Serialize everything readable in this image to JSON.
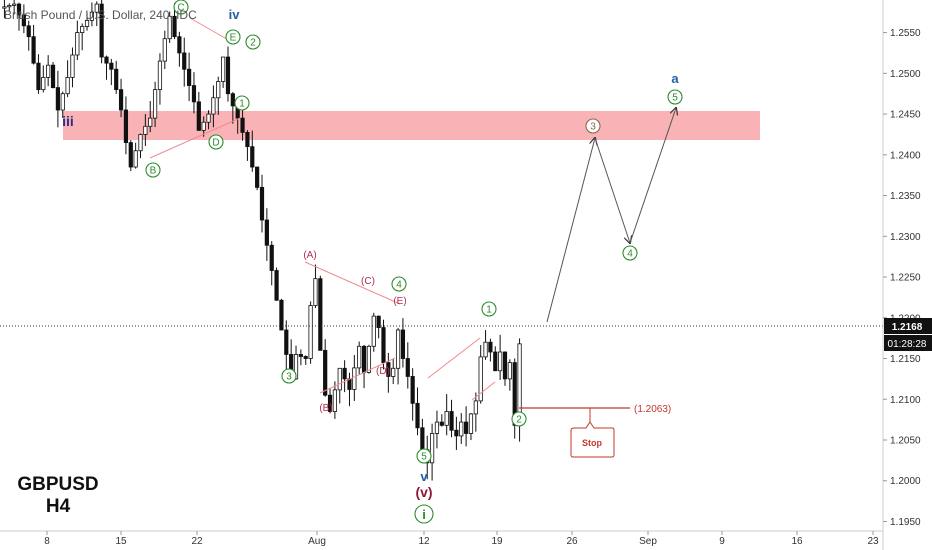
{
  "header": {
    "title": "British Pound / U.S. Dollar, 240, IDC"
  },
  "symbol": {
    "name": "GBPUSD",
    "timeframe": "H4"
  },
  "colors": {
    "bull": "#111111",
    "bear": "#111111",
    "green": "#2e8b2e",
    "red": "#c0392b",
    "blue": "#1e5fa8",
    "zone": "#f8a5a8"
  },
  "price_axis": {
    "ticks": [
      "1.2550",
      "1.2500",
      "1.2450",
      "1.2400",
      "1.2350",
      "1.2300",
      "1.2250",
      "1.2200",
      "1.2150",
      "1.2100",
      "1.2050",
      "1.2000",
      "1.1950"
    ],
    "current_price": "1.2168",
    "countdown": "01:28:28"
  },
  "time_axis": {
    "ticks": [
      "8",
      "15",
      "22",
      "Aug",
      "12",
      "19",
      "26",
      "Sep",
      "9",
      "16",
      "23"
    ]
  },
  "chart_data": {
    "type": "candlestick",
    "title": "British Pound / U.S. Dollar, 240, IDC",
    "ylim": [
      1.1915,
      1.259
    ],
    "current_price": 1.2168,
    "resistance_zone": [
      1.2405,
      1.244
    ],
    "stop_level": {
      "label": "Stop",
      "value": "(1.2063)",
      "price": 1.2063
    },
    "price_path": [
      [
        0,
        1.258
      ],
      [
        3,
        1.2585
      ],
      [
        6,
        1.2545
      ],
      [
        8,
        1.248
      ],
      [
        10,
        1.251
      ],
      [
        12,
        1.2455
      ],
      [
        14,
        1.2495
      ],
      [
        16,
        1.255
      ],
      [
        18,
        1.2565
      ],
      [
        20,
        1.2585
      ],
      [
        21,
        1.252
      ],
      [
        23,
        1.2505
      ],
      [
        25,
        1.2455
      ],
      [
        26,
        1.2415
      ],
      [
        27,
        1.2385
      ],
      [
        29,
        1.2425
      ],
      [
        31,
        1.2445
      ],
      [
        33,
        1.2515
      ],
      [
        35,
        1.257
      ],
      [
        36,
        1.2545
      ],
      [
        38,
        1.2505
      ],
      [
        40,
        1.2465
      ],
      [
        41,
        1.243
      ],
      [
        43,
        1.245
      ],
      [
        45,
        1.249
      ],
      [
        46,
        1.252
      ],
      [
        47,
        1.2475
      ],
      [
        49,
        1.2445
      ],
      [
        51,
        1.241
      ],
      [
        53,
        1.236
      ],
      [
        54,
        1.232
      ],
      [
        56,
        1.2258
      ],
      [
        58,
        1.2185
      ],
      [
        60,
        1.2125
      ],
      [
        61,
        1.2155
      ],
      [
        63,
        1.215
      ],
      [
        64,
        1.2215
      ],
      [
        65,
        1.2248
      ],
      [
        66,
        1.216
      ],
      [
        67,
        1.2105
      ],
      [
        68,
        1.2085
      ],
      [
        70,
        1.2138
      ],
      [
        72,
        1.2112
      ],
      [
        74,
        1.2165
      ],
      [
        75,
        1.2133
      ],
      [
        76,
        1.2165
      ],
      [
        77,
        1.2202
      ],
      [
        78,
        1.2188
      ],
      [
        79,
        1.2145
      ],
      [
        80,
        1.2128
      ],
      [
        81,
        1.2138
      ],
      [
        82,
        1.2185
      ],
      [
        83,
        1.215
      ],
      [
        84,
        1.2128
      ],
      [
        85,
        1.2095
      ],
      [
        86,
        1.2065
      ],
      [
        87,
        1.2038
      ],
      [
        88,
        1.2022
      ],
      [
        89,
        1.2058
      ],
      [
        90,
        1.2072
      ],
      [
        91,
        1.2068
      ],
      [
        92,
        1.2085
      ],
      [
        93,
        1.2062
      ],
      [
        94,
        1.2055
      ],
      [
        95,
        1.2072
      ],
      [
        96,
        1.2058
      ],
      [
        97,
        1.2082
      ],
      [
        98,
        1.2098
      ],
      [
        99,
        1.2152
      ],
      [
        100,
        1.217
      ],
      [
        101,
        1.2158
      ],
      [
        102,
        1.2135
      ],
      [
        103,
        1.2158
      ],
      [
        104,
        1.2125
      ],
      [
        105,
        1.2145
      ],
      [
        106,
        1.2068
      ],
      [
        107,
        1.2168
      ]
    ],
    "projection": [
      {
        "label": "3",
        "price": 1.2405
      },
      {
        "label": "4",
        "price": 1.2275
      },
      {
        "label": "5",
        "price": 1.2465
      }
    ]
  },
  "labels": {
    "wave_iii": "iii",
    "wave_iv": "iv",
    "wave_v": "v",
    "wave_v_paren": "(v)",
    "wave_i_circle": "i",
    "wave_a": "a",
    "A": "(A)",
    "B": "(B)",
    "C": "(C)",
    "D": "(D)",
    "E": "(E)",
    "cB": "B",
    "cC": "C",
    "cD": "D",
    "cE": "E",
    "n1": "1",
    "n2": "2",
    "n3": "3",
    "n4": "4",
    "n5": "5"
  }
}
